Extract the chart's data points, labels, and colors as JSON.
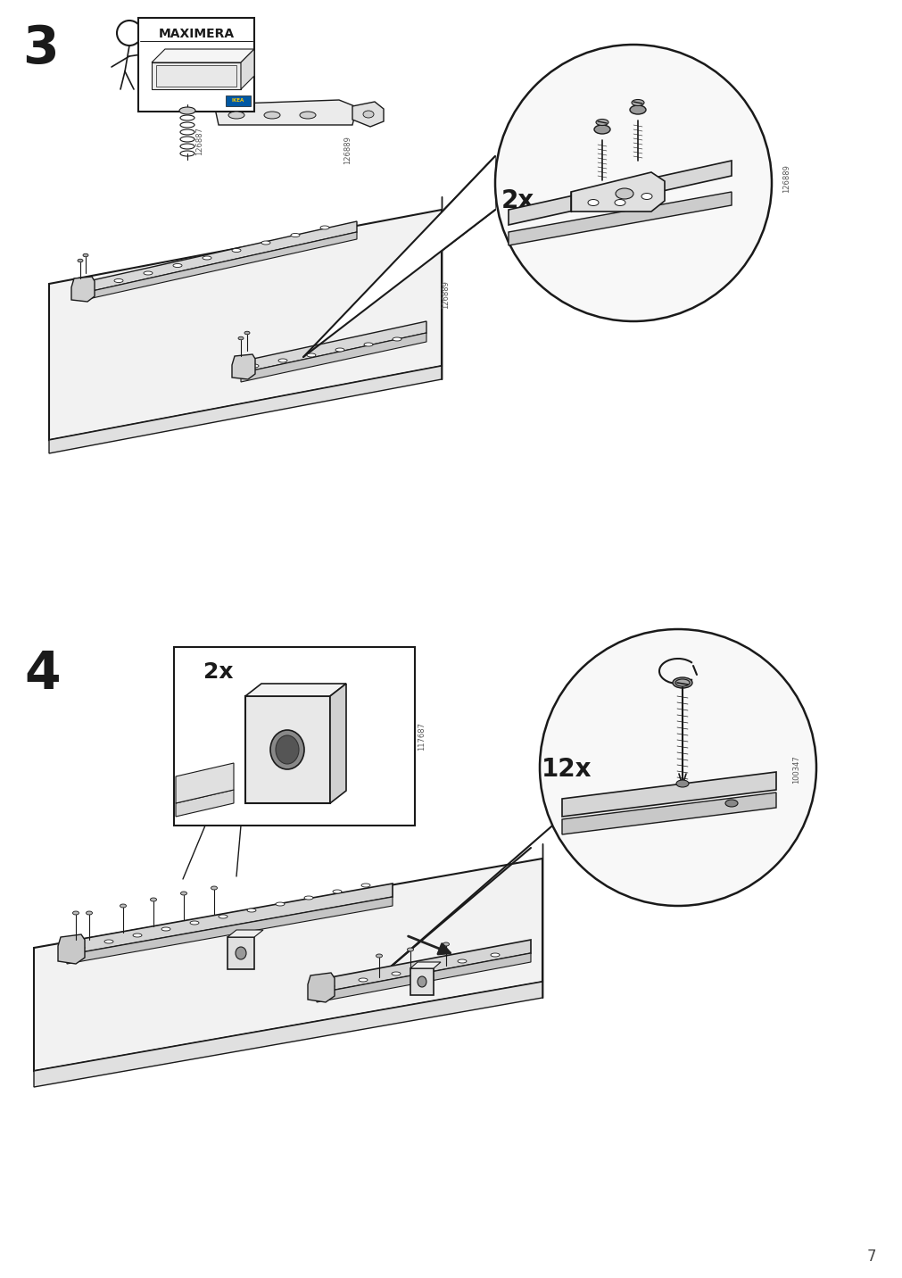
{
  "bg": "#ffffff",
  "lc": "#1a1a1a",
  "page_num": "7",
  "step3_num": "3",
  "step4_num": "4",
  "label_126887": "126887",
  "label_126889": "126889",
  "label_117687": "117687",
  "label_100347": "100347",
  "label_2x_s3": "2x",
  "label_2x_s4": "2x",
  "label_12x": "12x",
  "maximera": "MAXIMERA"
}
